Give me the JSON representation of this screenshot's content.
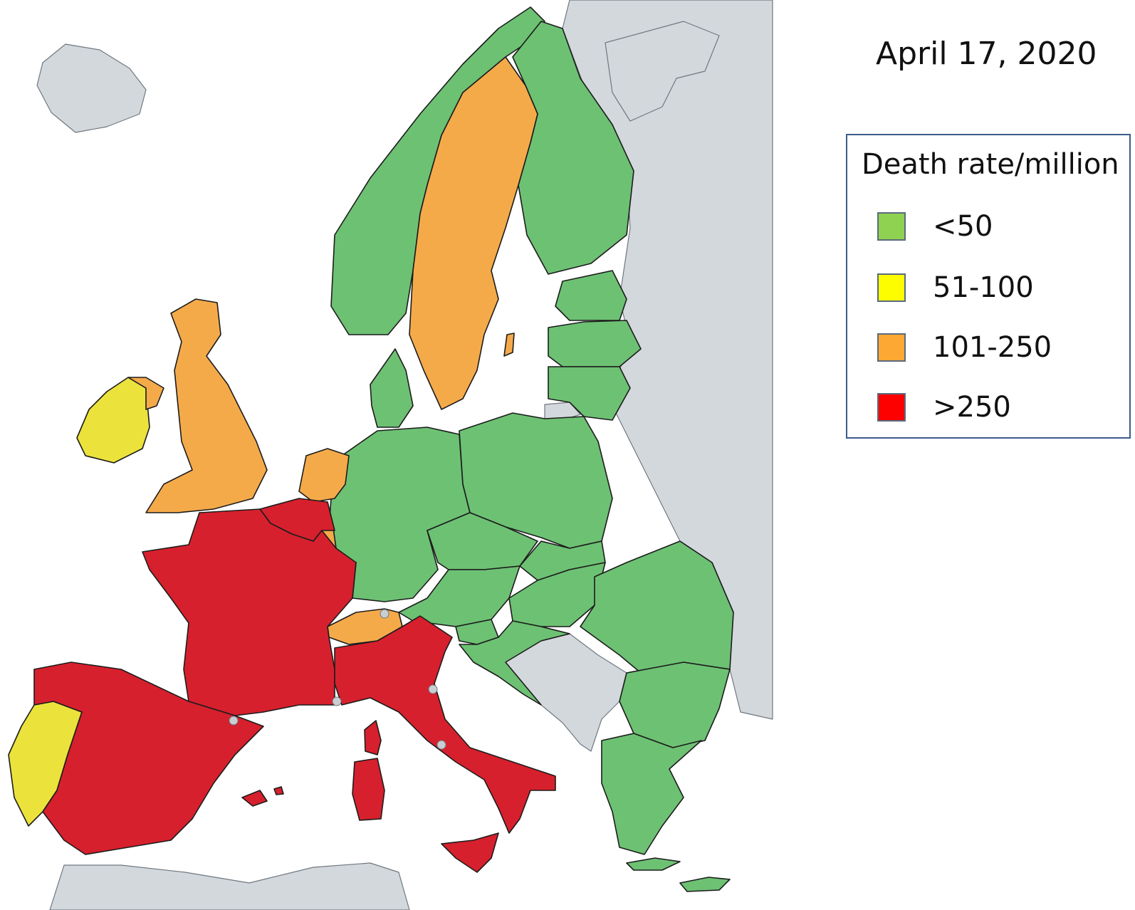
{
  "date_label": "April 17, 2020",
  "legend": {
    "title": "Death rate/million",
    "items": [
      {
        "label": "<50",
        "color": "#8fd150"
      },
      {
        "label": "51-100",
        "color": "#fdfd00"
      },
      {
        "label": "101-250",
        "color": "#fda832"
      },
      {
        "label": ">250",
        "color": "#fd0000"
      }
    ]
  },
  "map_colors": {
    "sea": "#ffffff",
    "non_covered": "#d3d8dc",
    "lt50": "#6dc173",
    "r51_100": "#ece23c",
    "r101_250": "#f5aa4a",
    "gt250": "#d7202d"
  },
  "regions": [
    {
      "id": "iceland",
      "category": "non_covered"
    },
    {
      "id": "russia-east",
      "category": "non_covered"
    },
    {
      "id": "kola-karelia",
      "category": "non_covered"
    },
    {
      "id": "north-africa",
      "category": "non_covered"
    },
    {
      "id": "balkans-gray",
      "category": "non_covered"
    },
    {
      "id": "kaliningrad",
      "category": "non_covered"
    },
    {
      "id": "norway",
      "category": "lt50"
    },
    {
      "id": "finland",
      "category": "lt50"
    },
    {
      "id": "estonia",
      "category": "lt50"
    },
    {
      "id": "latvia",
      "category": "lt50"
    },
    {
      "id": "lithuania",
      "category": "lt50"
    },
    {
      "id": "denmark",
      "category": "lt50"
    },
    {
      "id": "germany",
      "category": "lt50"
    },
    {
      "id": "poland",
      "category": "lt50"
    },
    {
      "id": "czechia",
      "category": "lt50"
    },
    {
      "id": "slovakia",
      "category": "lt50"
    },
    {
      "id": "austria",
      "category": "lt50"
    },
    {
      "id": "hungary",
      "category": "lt50"
    },
    {
      "id": "romania",
      "category": "lt50"
    },
    {
      "id": "bulgaria",
      "category": "lt50"
    },
    {
      "id": "greece",
      "category": "lt50"
    },
    {
      "id": "slovenia",
      "category": "lt50"
    },
    {
      "id": "croatia",
      "category": "lt50"
    },
    {
      "id": "cyprus",
      "category": "lt50"
    },
    {
      "id": "crete",
      "category": "lt50"
    },
    {
      "id": "ireland",
      "category": "r51_100"
    },
    {
      "id": "portugal",
      "category": "r51_100"
    },
    {
      "id": "sweden",
      "category": "r101_250"
    },
    {
      "id": "uk",
      "category": "r101_250"
    },
    {
      "id": "northern-ireland",
      "category": "r101_250"
    },
    {
      "id": "netherlands",
      "category": "r101_250"
    },
    {
      "id": "switzerland",
      "category": "r101_250"
    },
    {
      "id": "luxembourg",
      "category": "r101_250"
    },
    {
      "id": "gotland",
      "category": "r101_250"
    },
    {
      "id": "belgium",
      "category": "gt250"
    },
    {
      "id": "france",
      "category": "gt250"
    },
    {
      "id": "spain",
      "category": "gt250"
    },
    {
      "id": "italy",
      "category": "gt250"
    },
    {
      "id": "sardinia",
      "category": "gt250"
    },
    {
      "id": "corsica",
      "category": "gt250"
    },
    {
      "id": "sicily",
      "category": "gt250"
    },
    {
      "id": "balearics",
      "category": "gt250"
    }
  ]
}
